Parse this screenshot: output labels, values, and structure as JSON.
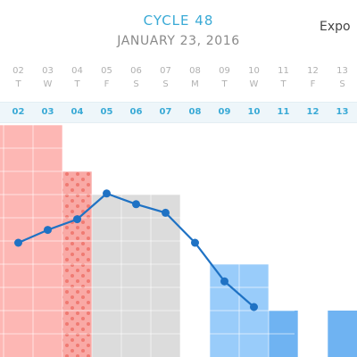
{
  "header": {
    "title": "CYCLE 48",
    "date": "JANUARY 23, 2016",
    "export_label": "Expo"
  },
  "days": [
    {
      "num": "02",
      "weekday": "T",
      "cycle_day": "02"
    },
    {
      "num": "03",
      "weekday": "W",
      "cycle_day": "03"
    },
    {
      "num": "04",
      "weekday": "T",
      "cycle_day": "04"
    },
    {
      "num": "05",
      "weekday": "F",
      "cycle_day": "05"
    },
    {
      "num": "06",
      "weekday": "S",
      "cycle_day": "06"
    },
    {
      "num": "07",
      "weekday": "S",
      "cycle_day": "07"
    },
    {
      "num": "08",
      "weekday": "M",
      "cycle_day": "08"
    },
    {
      "num": "09",
      "weekday": "T",
      "cycle_day": "09"
    },
    {
      "num": "10",
      "weekday": "W",
      "cycle_day": "10"
    },
    {
      "num": "11",
      "weekday": "T",
      "cycle_day": "11"
    },
    {
      "num": "12",
      "weekday": "F",
      "cycle_day": "12"
    },
    {
      "num": "13",
      "weekday": "S",
      "cycle_day": "13"
    }
  ],
  "chart_data": {
    "type": "bar",
    "columns": [
      {
        "kind": "period",
        "level": 10
      },
      {
        "kind": "period",
        "level": 10
      },
      {
        "kind": "period",
        "level": 10
      },
      {
        "kind": "spotting",
        "level": 8
      },
      {
        "kind": "neutral",
        "level": 7
      },
      {
        "kind": "neutral",
        "level": 7
      },
      {
        "kind": "neutral",
        "level": 7
      },
      {
        "kind": "none",
        "level": 0
      },
      {
        "kind": "fertile",
        "level": 4
      },
      {
        "kind": "fertile",
        "level": 4
      },
      {
        "kind": "fertile",
        "level": 2
      },
      {
        "kind": "none",
        "level": 0
      },
      {
        "kind": "fertile",
        "level": 2
      }
    ],
    "line": [
      null,
      2,
      2.6,
      3.1,
      4.3,
      3.8,
      3.4,
      2,
      0.2,
      -1,
      null,
      null,
      null
    ],
    "colors": {
      "period": "#fdb7b4",
      "spotting": "#f9a9a5",
      "spotting_dot": "#f07a72",
      "neutral": "#dcdcdc",
      "fertile": "#99ccfa",
      "fertile_dark": "#6fb3f2",
      "line": "#1f72c4",
      "grid": "#ffffff"
    }
  }
}
